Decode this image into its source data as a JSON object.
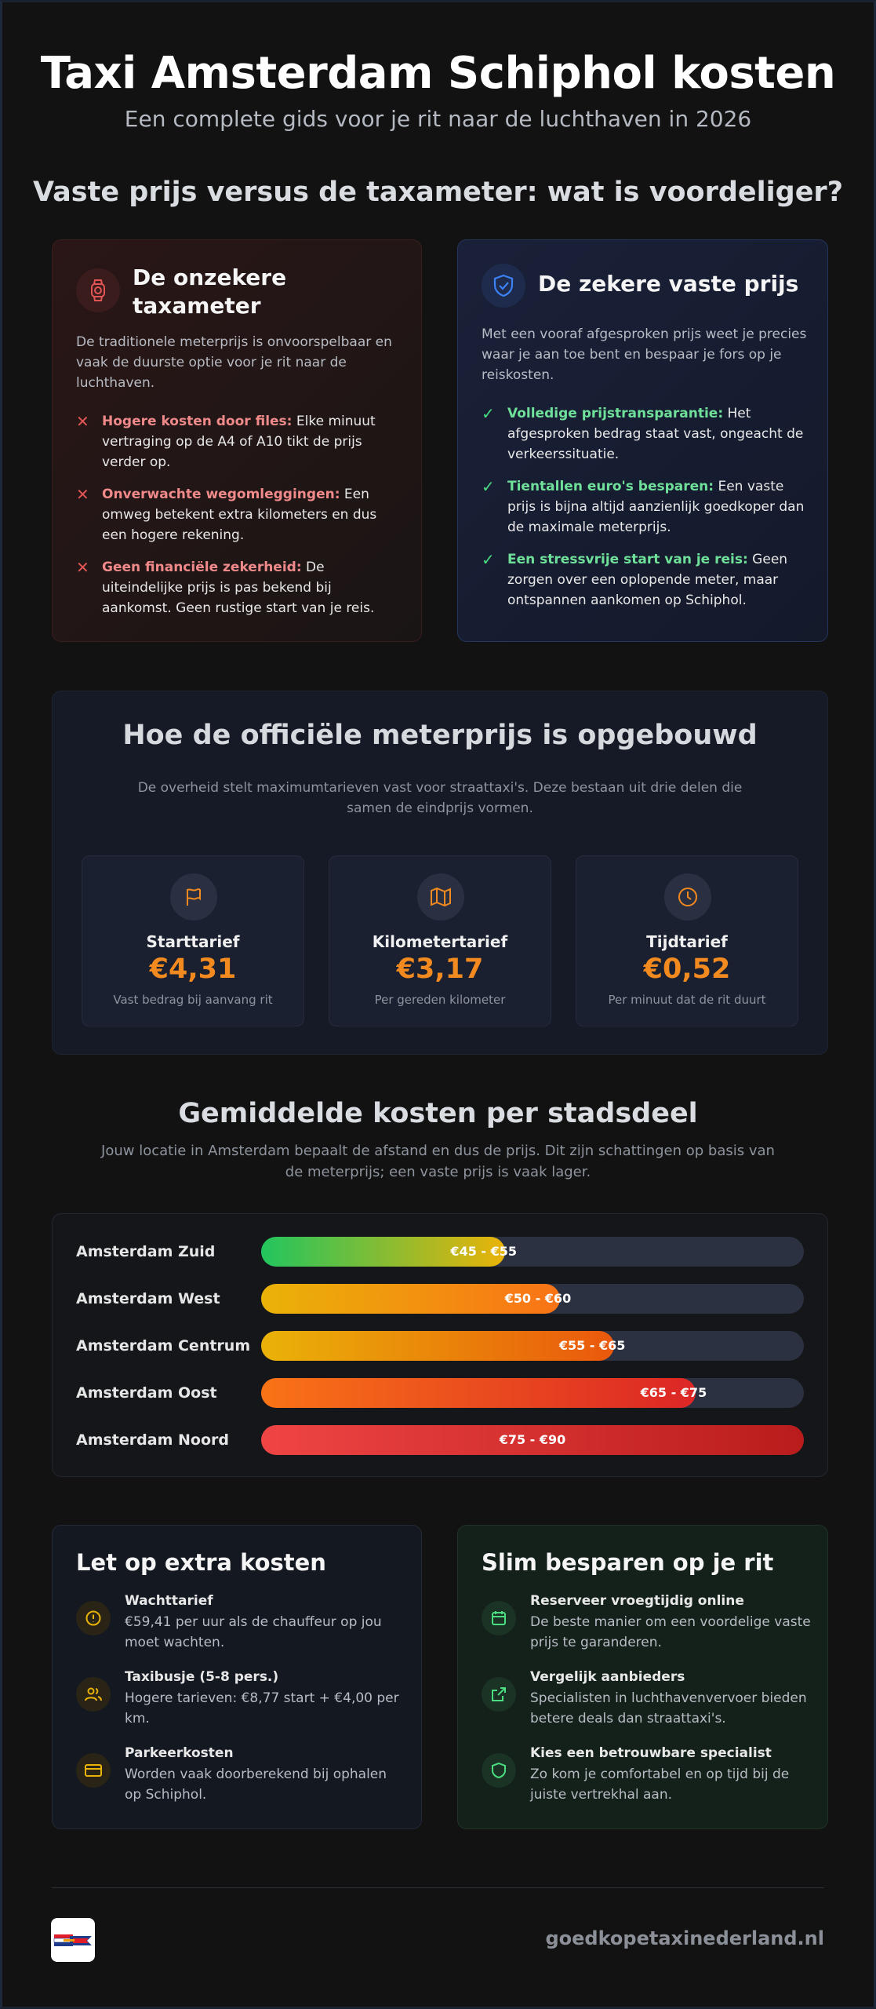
{
  "header": {
    "title": "Taxi Amsterdam Schiphol kosten",
    "subtitle": "Een complete gids voor je rit naar de luchthaven in 2026"
  },
  "comparison": {
    "title": "Vaste prijs versus de taxameter: wat is voordeliger?",
    "meter": {
      "icon": "taxi-meter-icon",
      "heading": "De onzekere taxameter",
      "intro": "De traditionele meterprijs is onvoorspelbaar en vaak de duurste optie voor je rit naar de luchthaven.",
      "points": [
        {
          "bold": "Hogere kosten door files:",
          "text": " Elke minuut vertraging op de A4 of A10 tikt de prijs verder op."
        },
        {
          "bold": "Onverwachte wegomleggingen:",
          "text": " Een omweg betekent extra kilometers en dus een hogere rekening."
        },
        {
          "bold": "Geen financiële zekerheid:",
          "text": " De uiteindelijke prijs is pas bekend bij aankomst. Geen rustige start van je reis."
        }
      ],
      "accent": "#e25555"
    },
    "fixed": {
      "icon": "shield-check-icon",
      "heading": "De zekere vaste prijs",
      "intro": "Met een vooraf afgesproken prijs weet je precies waar je aan toe bent en bespaar je fors op je reiskosten.",
      "points": [
        {
          "bold": "Volledige prijstransparantie:",
          "text": " Het afgesproken bedrag staat vast, ongeacht de verkeerssituatie."
        },
        {
          "bold": "Tientallen euro's besparen:",
          "text": " Een vaste prijs is bijna altijd aanzienlijk goedkoper dan de maximale meterprijs."
        },
        {
          "bold": "Een stressvrije start van je reis:",
          "text": " Geen zorgen over een oplopende meter, maar ontspannen aankomen op Schiphol."
        }
      ],
      "accent": "#3b82f6"
    }
  },
  "meter_price": {
    "title": "Hoe de officiële meterprijs is opgebouwd",
    "description": "De overheid stelt maximumtarieven vast voor straattaxi's. Deze bestaan uit drie delen die samen de eindprijs vormen.",
    "items": [
      {
        "icon": "flag-icon",
        "name": "Starttarief",
        "price": "€4,31",
        "desc": "Vast bedrag bij aanvang rit"
      },
      {
        "icon": "map-icon",
        "name": "Kilometertarief",
        "price": "€3,17",
        "desc": "Per gereden kilometer"
      },
      {
        "icon": "clock-icon",
        "name": "Tijdtarief",
        "price": "€0,52",
        "desc": "Per minuut dat de rit duurt"
      }
    ]
  },
  "districts": {
    "title": "Gemiddelde kosten per stadsdeel",
    "description": "Jouw locatie in Amsterdam bepaalt de afstand en dus de prijs. Dit zijn schattingen op basis van de meterprijs; een vaste prijs is vaak lager.",
    "rows": [
      {
        "name": "Amsterdam Zuid",
        "range": "€45 - €55",
        "fill": 0.45,
        "from": "#22c55e",
        "to": "#eab308"
      },
      {
        "name": "Amsterdam West",
        "range": "€50 - €60",
        "fill": 0.55,
        "from": "#eab308",
        "to": "#f97316"
      },
      {
        "name": "Amsterdam Centrum",
        "range": "€55 - €65",
        "fill": 0.65,
        "from": "#eab308",
        "to": "#ea580c"
      },
      {
        "name": "Amsterdam Oost",
        "range": "€65 - €75",
        "fill": 0.8,
        "from": "#f97316",
        "to": "#dc2626"
      },
      {
        "name": "Amsterdam Noord",
        "range": "€75 - €90",
        "fill": 1.0,
        "from": "#ef4444",
        "to": "#b91c1c"
      }
    ]
  },
  "extra_costs": {
    "title": "Let op extra kosten",
    "items": [
      {
        "icon": "alert-icon",
        "title": "Wachttarief",
        "desc": "€59,41 per uur als de chauffeur op jou moet wachten."
      },
      {
        "icon": "users-icon",
        "title": "Taxibusje (5-8 pers.)",
        "desc": "Hogere tarieven: €8,77 start + €4,00 per km."
      },
      {
        "icon": "card-icon",
        "title": "Parkeerkosten",
        "desc": "Worden vaak doorberekend bij ophalen op Schiphol."
      }
    ]
  },
  "savings": {
    "title": "Slim besparen op je rit",
    "items": [
      {
        "icon": "calendar-icon",
        "title": "Reserveer vroegtijdig online",
        "desc": "De beste manier om een voordelige vaste prijs te garanderen."
      },
      {
        "icon": "external-link-icon",
        "title": "Vergelijk aanbieders",
        "desc": "Specialisten in luchthavenvervoer bieden betere deals dan straattaxi's."
      },
      {
        "icon": "shield-icon",
        "title": "Kies een betrouwbare specialist",
        "desc": "Zo kom je comfortabel en op tijd bij de juiste vertrekhal aan."
      }
    ]
  },
  "footer": {
    "logo_icon": "brand-logo-icon",
    "site": "goedkopetaxinederland.nl"
  }
}
